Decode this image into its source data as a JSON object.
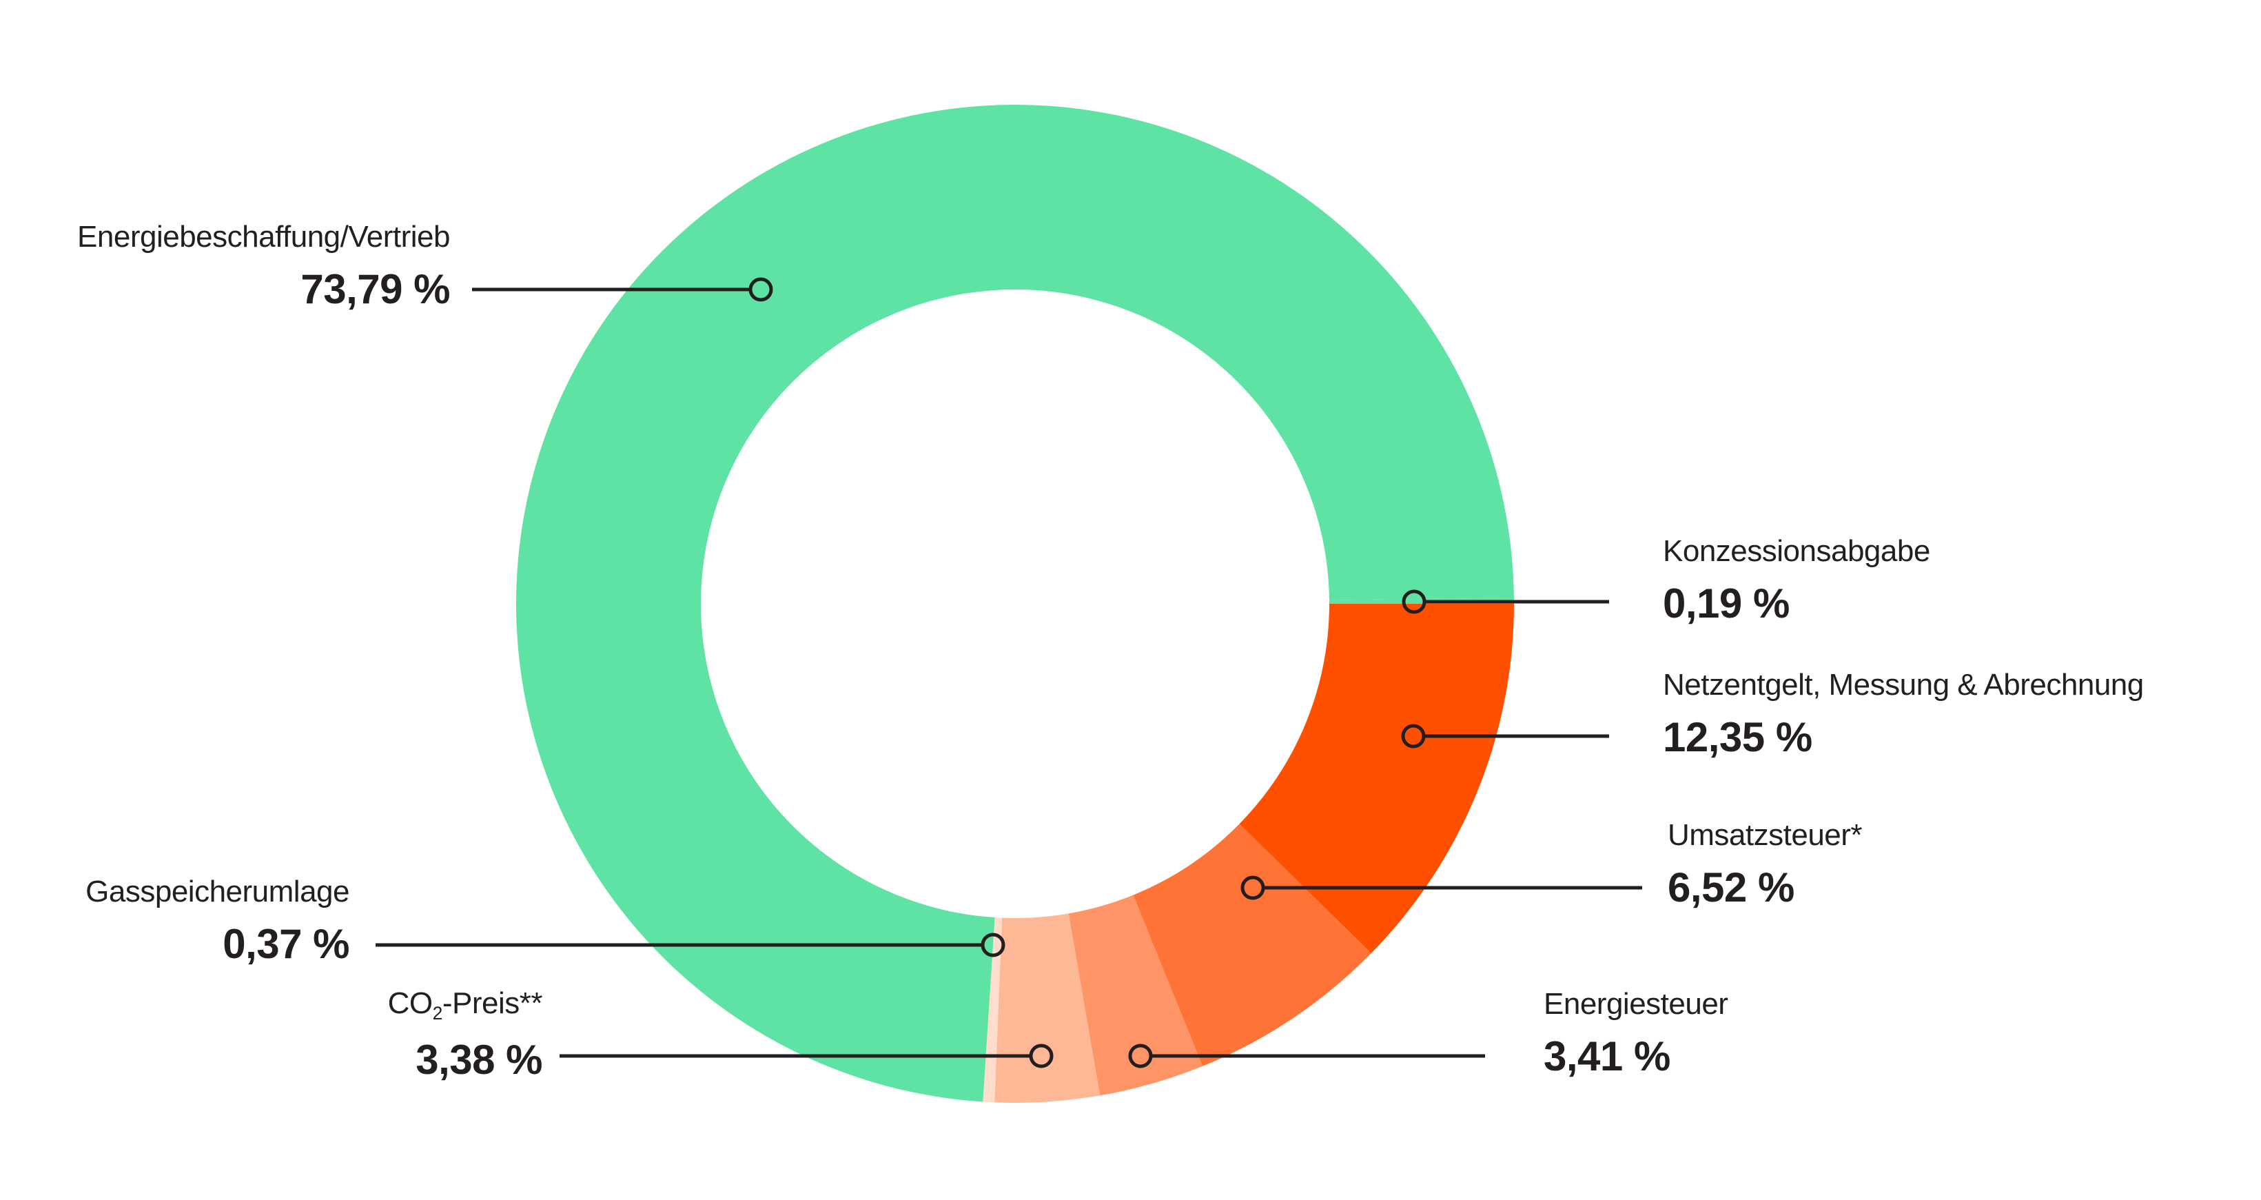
{
  "chart_data": {
    "type": "pie",
    "variant": "donut",
    "title": "",
    "unit": "%",
    "start_angle_deg": 0,
    "direction": "clockwise",
    "segments": [
      {
        "key": "netzentgelt",
        "label": "Netzentgelt, Messung & Abrechnung",
        "value": 12.35,
        "display": "12,35 %",
        "color": "#ff5000"
      },
      {
        "key": "umsatzsteuer",
        "label": "Umsatzsteuer*",
        "value": 6.52,
        "display": "6,52 %",
        "color": "#ff7336"
      },
      {
        "key": "energiesteuer",
        "label": "Energiesteuer",
        "value": 3.41,
        "display": "3,41 %",
        "color": "#ff9566"
      },
      {
        "key": "co2",
        "label": "CO2-Preis**",
        "value": 3.38,
        "display": "3,38 %",
        "color": "#ffb896"
      },
      {
        "key": "gasspeicher",
        "label": "Gasspeicherumlage",
        "value": 0.37,
        "display": "0,37 %",
        "color": "#ffdccb"
      },
      {
        "key": "energiebeschaffung",
        "label": "Energiebeschaffung/Vertrieb",
        "value": 73.79,
        "display": "73,79 %",
        "color": "#5ee3a5"
      },
      {
        "key": "konzession",
        "label": "Konzessionsabgabe",
        "value": 0.19,
        "display": "0,19 %",
        "color": "#5ee3a5"
      }
    ]
  },
  "labels": {
    "energiebeschaffung": {
      "name": "Energiebeschaffung/Vertrieb",
      "value": "73,79 %"
    },
    "konzession": {
      "name": "Konzessionsabgabe",
      "value": "0,19 %"
    },
    "netzentgelt": {
      "name": "Netzentgelt, Messung & Abrechnung",
      "value": "12,35 %"
    },
    "umsatzsteuer": {
      "name": "Umsatzsteuer*",
      "value": "6,52 %"
    },
    "energiesteuer": {
      "name": "Energiesteuer",
      "value": "3,41 %"
    },
    "co2": {
      "name_prefix": "CO",
      "name_sub": "2",
      "name_suffix": "-Preis**",
      "value": "3,38 %"
    },
    "gasspeicher": {
      "name": "Gasspeicherumlage",
      "value": "0,37 %"
    }
  },
  "colors": {
    "leader_line": "#231f20",
    "text": "#231f20"
  }
}
